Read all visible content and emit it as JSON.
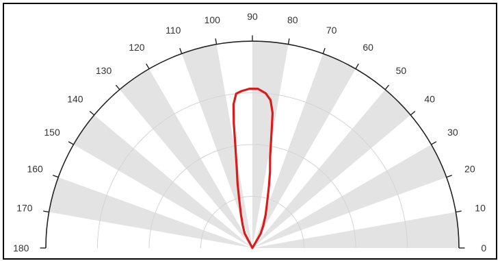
{
  "chart_data": {
    "type": "line",
    "subtype": "polar-half",
    "title": "",
    "angle_unit": "degrees",
    "angle_range": [
      0,
      180
    ],
    "angle_ticks": [
      0,
      10,
      20,
      30,
      40,
      50,
      60,
      70,
      80,
      90,
      100,
      110,
      120,
      130,
      140,
      150,
      160,
      170,
      180
    ],
    "angle_tick_labels": [
      "0",
      "10",
      "20",
      "30",
      "40",
      "50",
      "60",
      "70",
      "80",
      "90",
      "100",
      "110",
      "120",
      "130",
      "140",
      "150",
      "160",
      "170",
      "180"
    ],
    "radial_range": [
      0,
      1
    ],
    "radial_grid": [
      0.25,
      0.5,
      0.75
    ],
    "radial_labels_shown": false,
    "grid": true,
    "alternating_sector_shading": true,
    "series": [
      {
        "color": "#dd1a1a",
        "points": [
          {
            "theta": 60,
            "r": 0.08
          },
          {
            "theta": 64,
            "r": 0.12
          },
          {
            "theta": 68,
            "r": 0.17
          },
          {
            "theta": 72,
            "r": 0.23
          },
          {
            "theta": 75,
            "r": 0.31
          },
          {
            "theta": 77,
            "r": 0.38
          },
          {
            "theta": 79,
            "r": 0.45
          },
          {
            "theta": 80.5,
            "r": 0.56
          },
          {
            "theta": 81.5,
            "r": 0.66
          },
          {
            "theta": 83,
            "r": 0.72
          },
          {
            "theta": 85,
            "r": 0.75
          },
          {
            "theta": 88,
            "r": 0.77
          },
          {
            "theta": 91,
            "r": 0.77
          },
          {
            "theta": 94,
            "r": 0.76
          },
          {
            "theta": 96,
            "r": 0.75
          },
          {
            "theta": 97.5,
            "r": 0.7
          },
          {
            "theta": 98.5,
            "r": 0.61
          },
          {
            "theta": 99.5,
            "r": 0.5
          },
          {
            "theta": 101,
            "r": 0.4
          },
          {
            "theta": 103,
            "r": 0.32
          },
          {
            "theta": 105,
            "r": 0.25
          },
          {
            "theta": 109,
            "r": 0.17
          },
          {
            "theta": 113,
            "r": 0.12
          },
          {
            "theta": 118,
            "r": 0.08
          },
          {
            "theta": 90,
            "r": 0.0
          }
        ]
      }
    ],
    "colors": {
      "shade": "#e3e3e3",
      "grid": "#d4d4d4",
      "axis": "#222222",
      "frame": "#000000",
      "label": "#333333"
    }
  }
}
